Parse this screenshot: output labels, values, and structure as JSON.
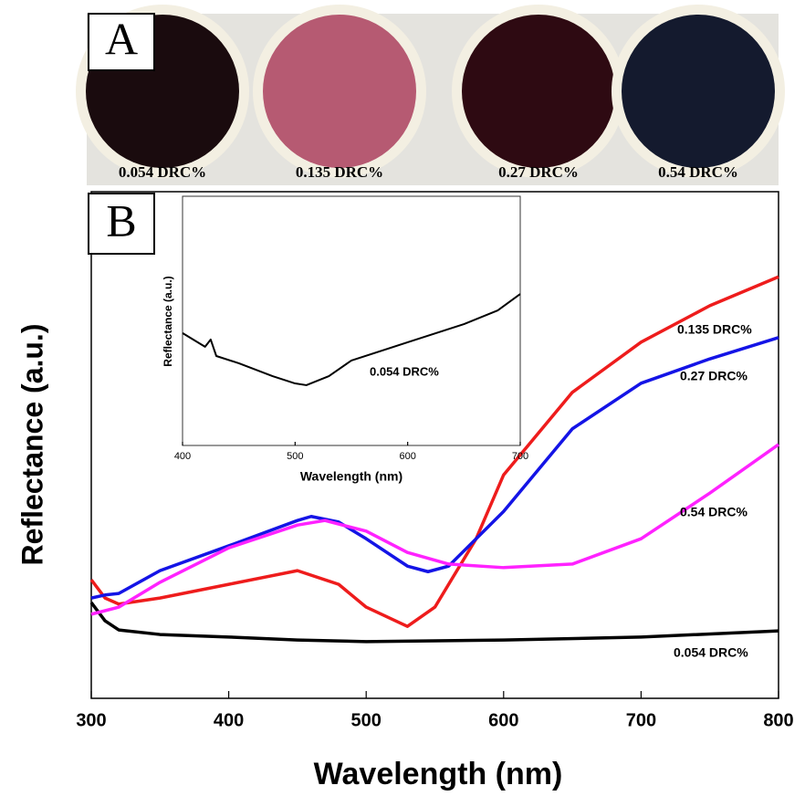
{
  "panel_a": {
    "label": "A",
    "samples": [
      {
        "label": "0.054 DRC%",
        "color": "#1a0b0e"
      },
      {
        "label": "0.135 DRC%",
        "color": "#b65a72"
      },
      {
        "label": "0.27 DRC%",
        "color": "#2e0a12"
      },
      {
        "label": "0.54 DRC%",
        "color": "#141a2e"
      }
    ]
  },
  "chart_data": [
    {
      "type": "line",
      "panel_label": "B",
      "x_label": "Wavelength (nm)",
      "y_label": "Reflectance (a.u.)",
      "xlim": [
        300,
        800
      ],
      "xticks": [
        300,
        400,
        500,
        600,
        700,
        800
      ],
      "ylim": [
        0,
        100
      ],
      "series": [
        {
          "name": "0.054 DRC%",
          "color": "#000000",
          "x": [
            300,
            310,
            320,
            350,
            400,
            450,
            500,
            600,
            700,
            800
          ],
          "values": [
            18.9,
            15.3,
            13.5,
            12.6,
            12.1,
            11.5,
            11.2,
            11.5,
            12.1,
            13.3
          ]
        },
        {
          "name": "0.135 DRC%",
          "color": "#ee1c1c",
          "x": [
            300,
            310,
            320,
            350,
            400,
            450,
            480,
            500,
            530,
            550,
            580,
            600,
            650,
            700,
            750,
            800
          ],
          "values": [
            23.4,
            19.8,
            18.6,
            19.8,
            22.5,
            25.2,
            22.5,
            18.0,
            14.2,
            18.0,
            31.5,
            44.1,
            60.4,
            70.3,
            77.5,
            83.2
          ]
        },
        {
          "name": "0.27 DRC%",
          "color": "#1414e6",
          "x": [
            300,
            310,
            320,
            350,
            400,
            450,
            460,
            480,
            500,
            530,
            545,
            560,
            600,
            650,
            700,
            750,
            800
          ],
          "values": [
            19.8,
            20.4,
            20.7,
            25.2,
            30.1,
            35.1,
            35.9,
            34.8,
            31.5,
            26.1,
            25.0,
            26.1,
            36.9,
            53.2,
            62.2,
            67.0,
            71.2
          ]
        },
        {
          "name": "0.54 DRC%",
          "color": "#ff22ff",
          "x": [
            300,
            320,
            350,
            400,
            450,
            470,
            500,
            530,
            560,
            600,
            650,
            700,
            750,
            800
          ],
          "values": [
            16.6,
            18.0,
            22.9,
            29.7,
            34.2,
            35.1,
            33.0,
            28.8,
            26.5,
            25.8,
            26.5,
            31.5,
            40.5,
            50.1
          ]
        }
      ]
    },
    {
      "type": "line",
      "x_label": "Wavelength (nm)",
      "y_label": "Reflectance (a.u.)",
      "xlim": [
        400,
        700
      ],
      "xticks": [
        400,
        500,
        600,
        700
      ],
      "ylim": [
        0,
        100
      ],
      "annotation": "0.054 DRC%",
      "series": [
        {
          "color": "#000000",
          "x": [
            400,
            420,
            425,
            430,
            450,
            480,
            500,
            510,
            530,
            550,
            600,
            650,
            680,
            700
          ],
          "values": [
            45.1,
            39.6,
            42.5,
            35.9,
            33.0,
            27.8,
            24.9,
            24.2,
            27.8,
            34.1,
            41.4,
            48.7,
            54.2,
            60.8
          ]
        }
      ]
    }
  ]
}
